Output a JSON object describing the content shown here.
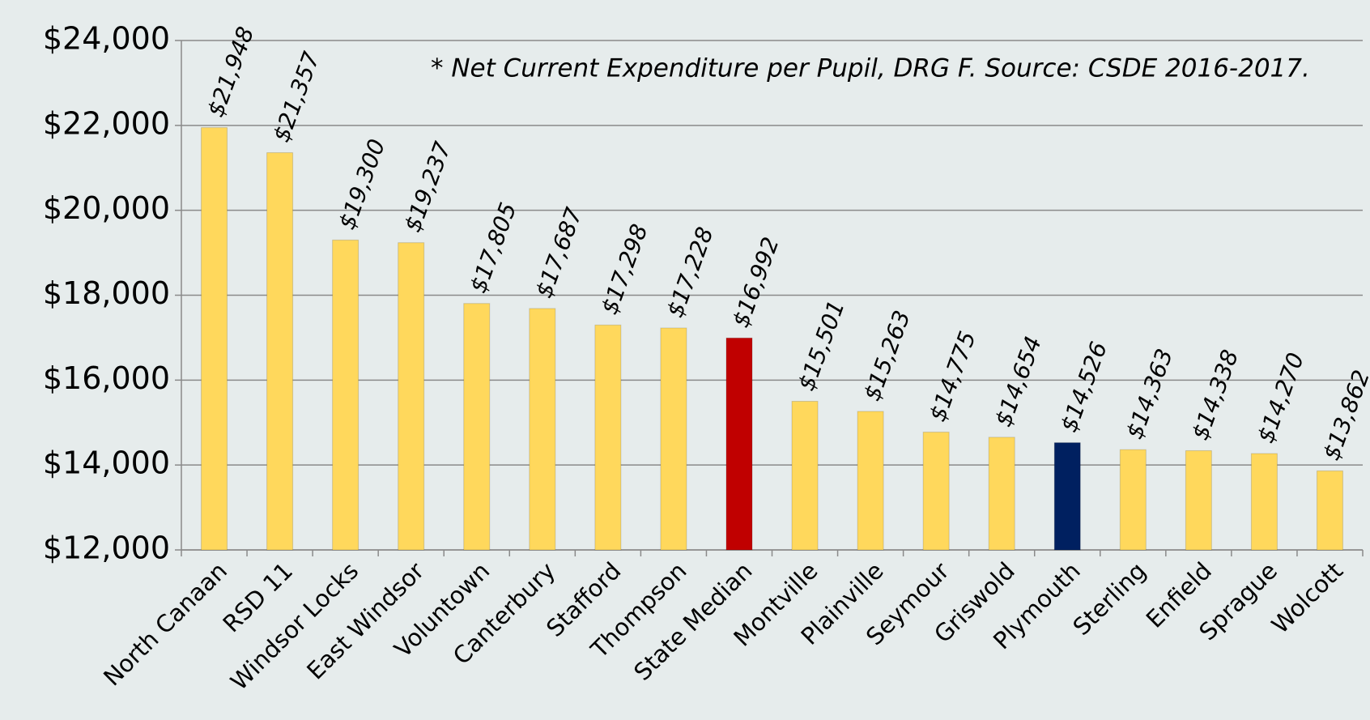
{
  "chart_data": {
    "type": "bar",
    "annotation": "* Net Current Expenditure per Pupil, DRG F. Source: CSDE 2016-2017.",
    "categories": [
      "North Canaan",
      "RSD 11",
      "Windsor Locks",
      "East Windsor",
      "Voluntown",
      "Canterbury",
      "Stafford",
      "Thompson",
      "State Median",
      "Montville",
      "Plainville",
      "Seymour",
      "Griswold",
      "Plymouth",
      "Sterling",
      "Enfield",
      "Sprague",
      "Wolcott"
    ],
    "values": [
      21948,
      21357,
      19300,
      19237,
      17805,
      17687,
      17298,
      17228,
      16992,
      15501,
      15263,
      14775,
      14654,
      14526,
      14363,
      14338,
      14270,
      13862
    ],
    "value_labels": [
      "$21,948",
      "$21,357",
      "$19,300",
      "$19,237",
      "$17,805",
      "$17,687",
      "$17,298",
      "$17,228",
      "$16,992",
      "$15,501",
      "$15,263",
      "$14,775",
      "$14,654",
      "$14,526",
      "$14,363",
      "$14,338",
      "$14,270",
      "$13,862"
    ],
    "colors": [
      "#ffd85c",
      "#ffd85c",
      "#ffd85c",
      "#ffd85c",
      "#ffd85c",
      "#ffd85c",
      "#ffd85c",
      "#ffd85c",
      "#c00000",
      "#ffd85c",
      "#ffd85c",
      "#ffd85c",
      "#ffd85c",
      "#002060",
      "#ffd85c",
      "#ffd85c",
      "#ffd85c",
      "#ffd85c"
    ],
    "ylim": [
      12000,
      24000
    ],
    "yticks": [
      {
        "value": 12000,
        "label": "$12,000"
      },
      {
        "value": 14000,
        "label": "$14,000"
      },
      {
        "value": 16000,
        "label": "$16,000"
      },
      {
        "value": 18000,
        "label": "$18,000"
      },
      {
        "value": 20000,
        "label": "$20,000"
      },
      {
        "value": 22000,
        "label": "$22,000"
      },
      {
        "value": 24000,
        "label": "$24,000"
      }
    ],
    "grid": true
  }
}
